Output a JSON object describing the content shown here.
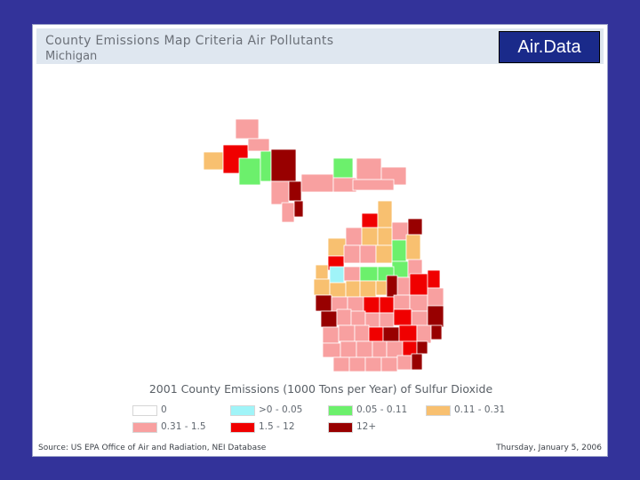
{
  "header": {
    "title": "County Emissions Map    Criteria Air Pollutants",
    "state": "Michigan",
    "brand": "Air.Data"
  },
  "legend": {
    "title": "2001 County Emissions (1000 Tons per Year) of Sulfur Dioxide",
    "items": [
      {
        "label": "0",
        "color": "#ffffff"
      },
      {
        "label": ">0 - 0.05",
        "color": "#a0f4f8"
      },
      {
        "label": "0.05 - 0.11",
        "color": "#6cf06c"
      },
      {
        "label": "0.11 - 0.31",
        "color": "#f8c070"
      },
      {
        "label": "0.31 - 1.5",
        "color": "#f8a0a0"
      },
      {
        "label": "1.5 - 12",
        "color": "#f00000"
      },
      {
        "label": "12+",
        "color": "#980000"
      }
    ]
  },
  "footer": {
    "source": "Source: US EPA  Office of Air and Radiation, NEI Database",
    "date": "Thursday, January 5, 2006"
  },
  "colors": {
    "background": "#33339a",
    "header_band": "#dfe7f0",
    "brand_box": "#1a2a8a"
  }
}
